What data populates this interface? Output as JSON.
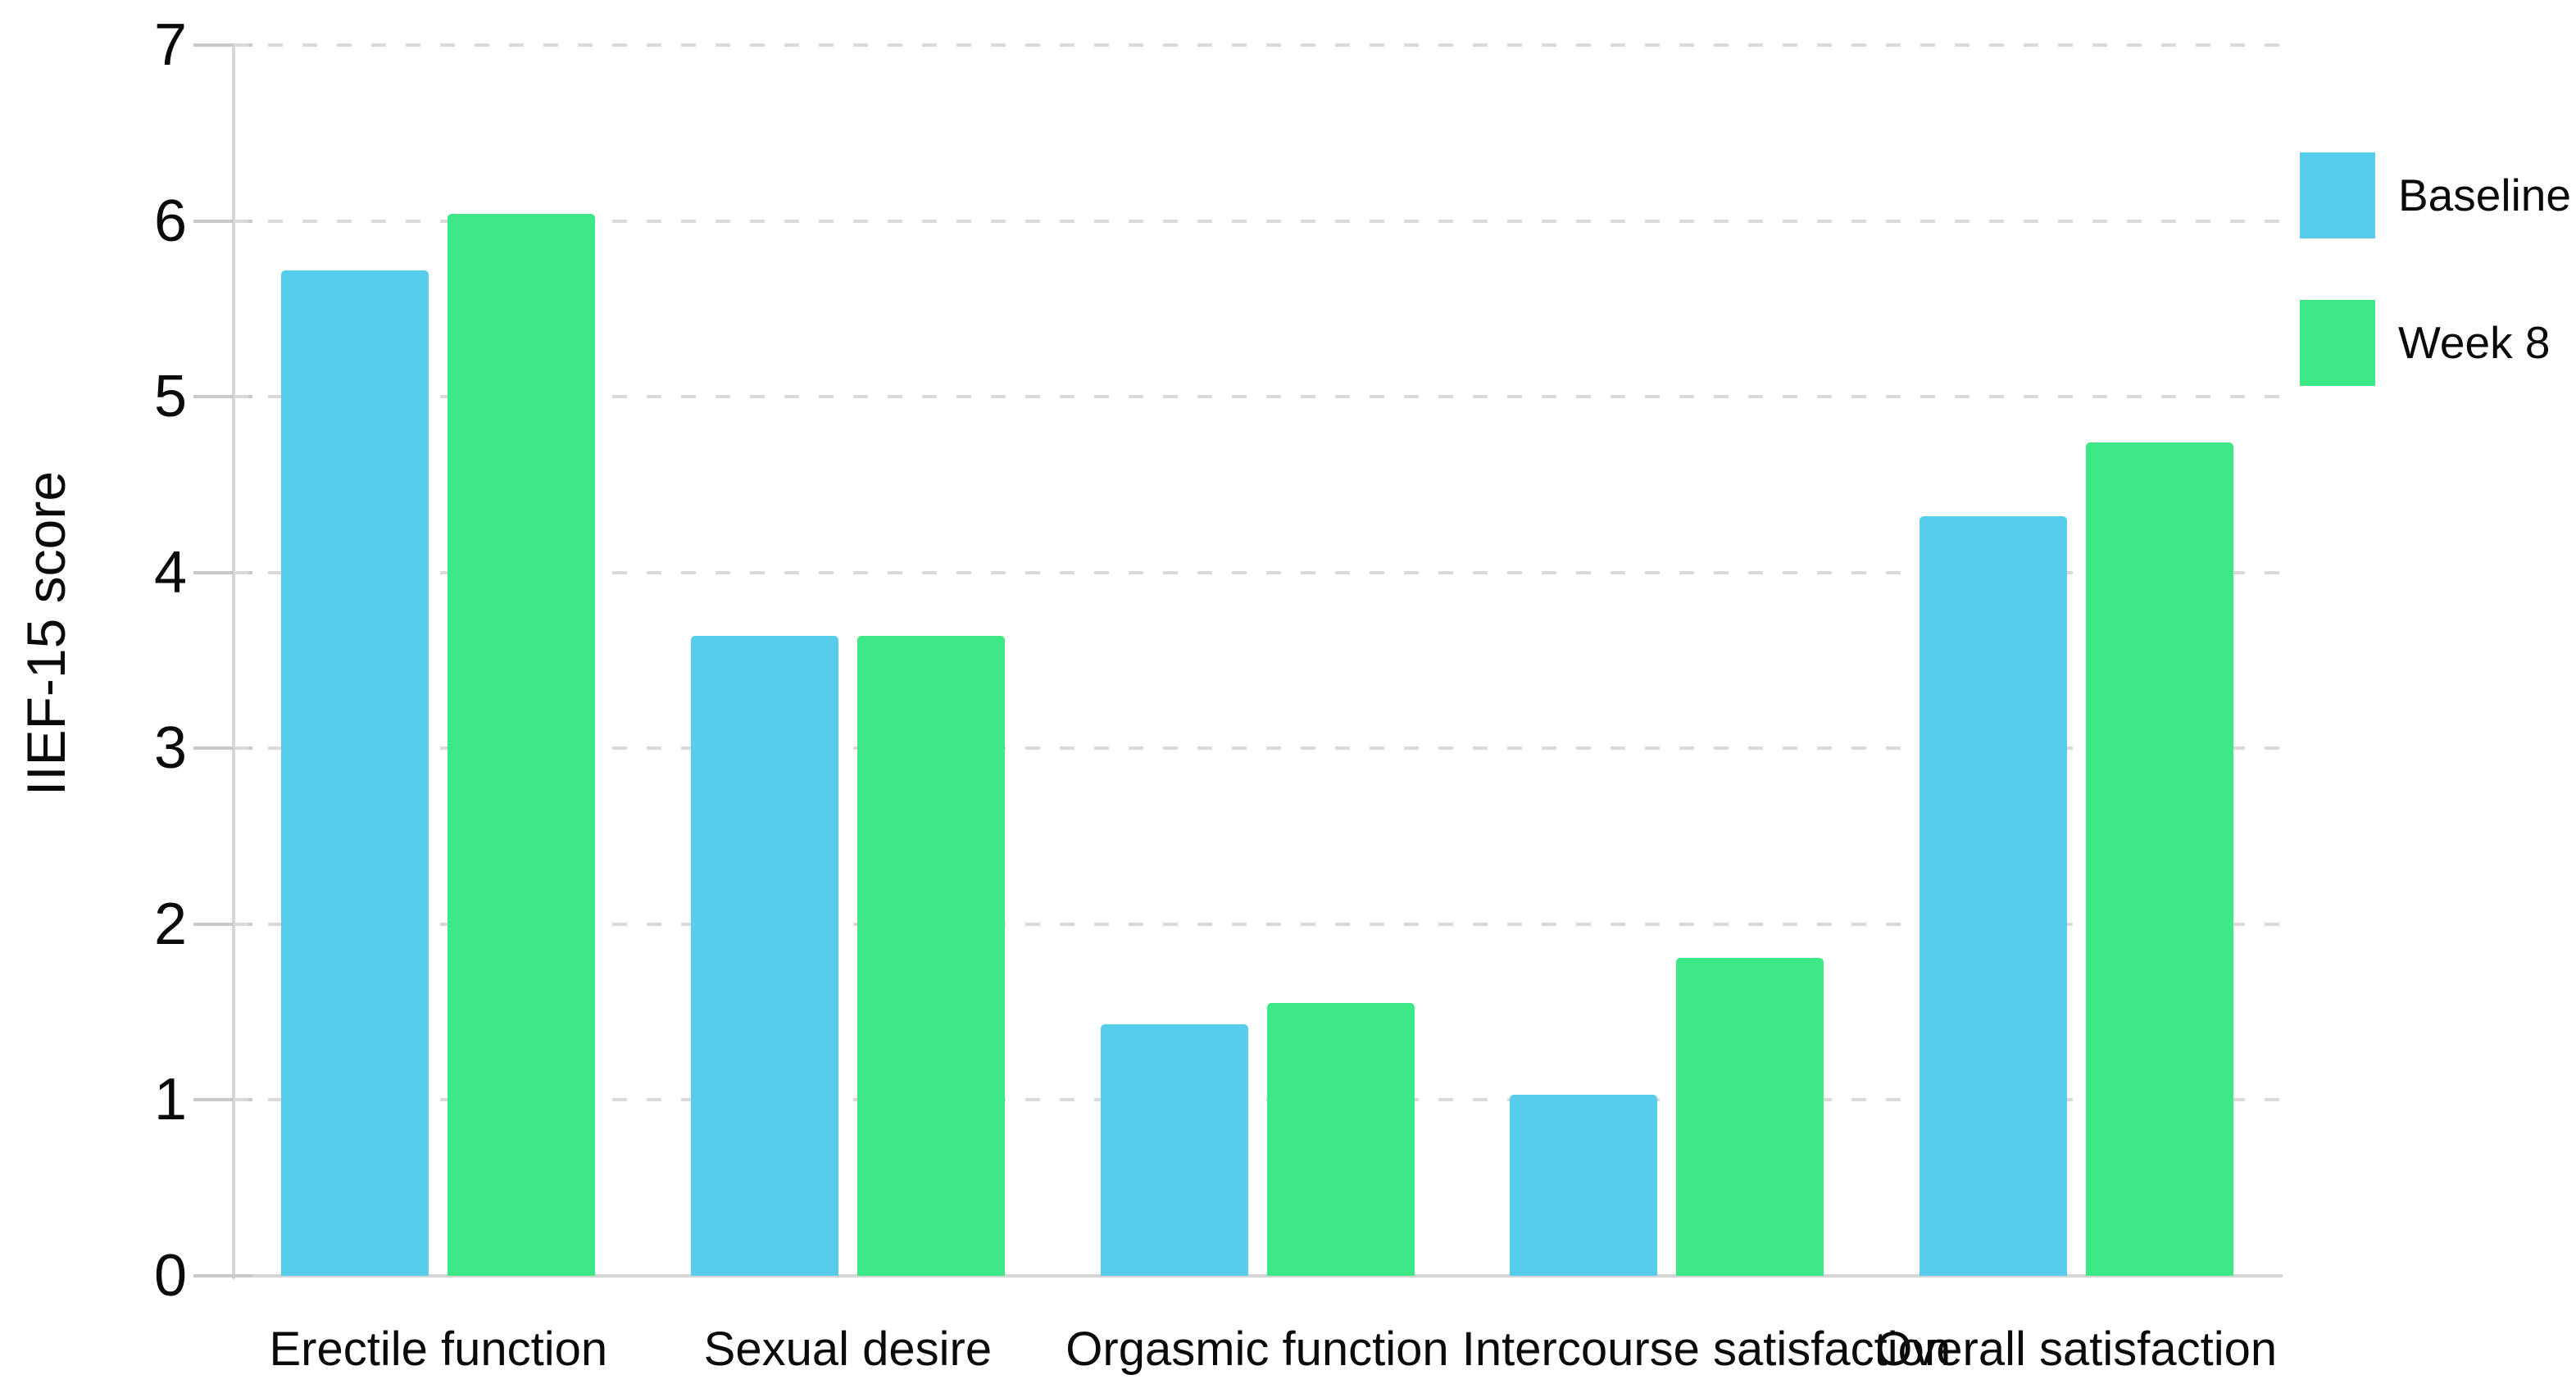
{
  "chart_data": {
    "type": "bar",
    "title": "",
    "xlabel": "",
    "ylabel": "IIEF-15 score",
    "ylim": [
      0,
      7
    ],
    "yticks": [
      0,
      1,
      2,
      3,
      4,
      5,
      6,
      7
    ],
    "grid": "horizontal dashed gridlines at each integer",
    "legend_position": "top-right",
    "axis_color": "#d6d6d6",
    "grid_color": "#d9d9d9",
    "categories": [
      "Erectile function",
      "Sexual desire",
      "Orgasmic function",
      "Intercourse satisfaction",
      "Overall satisfaction"
    ],
    "series": [
      {
        "name": "Baseline",
        "color": "#57cdeb",
        "values": [
          5.72,
          3.64,
          1.43,
          1.03,
          4.32
        ]
      },
      {
        "name": "Week 8",
        "color": "#3de886",
        "values": [
          6.04,
          3.64,
          1.55,
          1.81,
          4.74
        ]
      }
    ]
  }
}
